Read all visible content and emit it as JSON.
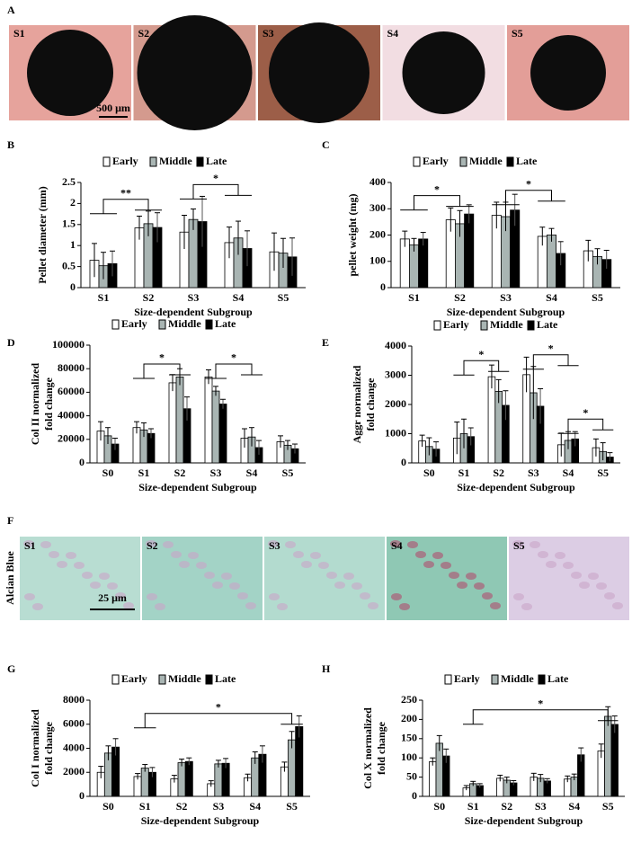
{
  "panel_labels": [
    "A",
    "B",
    "C",
    "D",
    "E",
    "F",
    "G",
    "H"
  ],
  "images_top": {
    "labels": [
      "S1",
      "S2",
      "S3",
      "S4",
      "S5"
    ],
    "scale_bar": "500 μm"
  },
  "images_stain": {
    "stain": "Alcian Blue",
    "labels": [
      "S1",
      "S2",
      "S3",
      "S4",
      "S5"
    ],
    "scale_bar": "25 μm"
  },
  "chart_data": [
    {
      "type": "bar",
      "ylabel": [
        "Pellet diameter (mm)"
      ],
      "xlabel": "Size-dependent Subgroup",
      "categories": [
        "S1",
        "S2",
        "S3",
        "S4",
        "S5"
      ],
      "series": [
        {
          "name": "Early",
          "color": "#ffffff",
          "values": [
            0.65,
            1.42,
            1.32,
            1.07,
            0.85
          ],
          "errors": [
            0.4,
            0.28,
            0.4,
            0.37,
            0.45
          ]
        },
        {
          "name": "Middle",
          "color": "#a9b5b3",
          "values": [
            0.52,
            1.52,
            1.62,
            1.18,
            0.82
          ],
          "errors": [
            0.32,
            0.3,
            0.25,
            0.4,
            0.35
          ]
        },
        {
          "name": "Late",
          "color": "#000000",
          "values": [
            0.57,
            1.43,
            1.57,
            0.93,
            0.73
          ],
          "errors": [
            0.3,
            0.35,
            0.6,
            0.42,
            0.45
          ]
        }
      ],
      "ylim": [
        0,
        2.5
      ],
      "yticks": [
        0,
        0.5,
        1,
        1.5,
        2,
        2.5
      ],
      "annotations": [
        {
          "text": "**",
          "from": 0,
          "to": 1,
          "y": 2.1
        },
        {
          "text": "*",
          "from": 2,
          "to": 3,
          "y": 2.45
        }
      ]
    },
    {
      "type": "bar",
      "ylabel": [
        "pellet weight (mg)"
      ],
      "xlabel": "Size-dependent Subgroup",
      "categories": [
        "S1",
        "S2",
        "S3",
        "S4",
        "S5"
      ],
      "series": [
        {
          "name": "Early",
          "color": "#ffffff",
          "values": [
            185,
            258,
            275,
            195,
            140
          ],
          "errors": [
            30,
            45,
            50,
            35,
            40
          ]
        },
        {
          "name": "Middle",
          "color": "#a9b5b3",
          "values": [
            162,
            243,
            270,
            200,
            118
          ],
          "errors": [
            25,
            50,
            55,
            25,
            30
          ]
        },
        {
          "name": "Late",
          "color": "#000000",
          "values": [
            185,
            280,
            295,
            130,
            107
          ],
          "errors": [
            25,
            35,
            60,
            45,
            35
          ]
        }
      ],
      "ylim": [
        0,
        400
      ],
      "yticks": [
        0,
        100,
        200,
        300,
        400
      ],
      "annotations": [
        {
          "text": "*",
          "from": 0,
          "to": 1,
          "y": 350
        },
        {
          "text": "*",
          "from": 2,
          "to": 3,
          "y": 370
        }
      ]
    },
    {
      "type": "bar",
      "ylabel": [
        "Col II normalized",
        "fold change"
      ],
      "xlabel": "Size-dependent Subgroup",
      "categories": [
        "S0",
        "S1",
        "S2",
        "S3",
        "S4",
        "S5"
      ],
      "series": [
        {
          "name": "Early",
          "color": "#ffffff",
          "values": [
            27000,
            30000,
            68000,
            73000,
            21000,
            18000
          ],
          "errors": [
            8000,
            5000,
            7000,
            6000,
            8000,
            5000
          ]
        },
        {
          "name": "Middle",
          "color": "#a9b5b3",
          "values": [
            23000,
            28000,
            73000,
            61000,
            22000,
            15000
          ],
          "errors": [
            7000,
            6000,
            7000,
            4000,
            8000,
            4000
          ]
        },
        {
          "name": "Late",
          "color": "#000000",
          "values": [
            16000,
            25000,
            46000,
            50000,
            13000,
            12000
          ],
          "errors": [
            5000,
            4000,
            10000,
            4000,
            6000,
            4000
          ]
        }
      ],
      "ylim": [
        0,
        100000
      ],
      "yticks": [
        0,
        20000,
        40000,
        60000,
        80000,
        100000
      ],
      "annotations": [
        {
          "text": "*",
          "from": 1,
          "to": 2,
          "y": 84000
        },
        {
          "text": "*",
          "from": 3,
          "to": 4,
          "y": 84000
        }
      ]
    },
    {
      "type": "bar",
      "ylabel": [
        "Aggr normalized",
        "fold change"
      ],
      "xlabel": "Size-dependent Subgroup",
      "categories": [
        "S0",
        "S1",
        "S2",
        "S3",
        "S4",
        "S5"
      ],
      "series": [
        {
          "name": "Early",
          "color": "#ffffff",
          "values": [
            750,
            850,
            2950,
            3020,
            620,
            520
          ],
          "errors": [
            200,
            550,
            400,
            600,
            400,
            300
          ]
        },
        {
          "name": "Middle",
          "color": "#a9b5b3",
          "values": [
            560,
            1000,
            2450,
            2400,
            770,
            390
          ],
          "errors": [
            300,
            500,
            400,
            900,
            300,
            300
          ]
        },
        {
          "name": "Late",
          "color": "#000000",
          "values": [
            470,
            900,
            1970,
            1940,
            820,
            200
          ],
          "errors": [
            250,
            300,
            500,
            600,
            250,
            150
          ]
        }
      ],
      "ylim": [
        0,
        4000
      ],
      "yticks": [
        0,
        1000,
        2000,
        3000,
        4000
      ],
      "annotations": [
        {
          "text": "*",
          "from": 1,
          "to": 2,
          "y": 3500
        },
        {
          "text": "*",
          "from": 3,
          "to": 4,
          "y": 3700
        },
        {
          "text": "*",
          "from": 4,
          "to": 5,
          "y": 1500
        }
      ]
    },
    {
      "type": "bar",
      "ylabel": [
        "Col I normalized",
        "fold change"
      ],
      "xlabel": "Size-dependent Subgroup",
      "categories": [
        "S0",
        "S1",
        "S2",
        "S3",
        "S4",
        "S5"
      ],
      "series": [
        {
          "name": "Early",
          "color": "#ffffff",
          "values": [
            2000,
            1650,
            1450,
            1050,
            1550,
            2450
          ],
          "errors": [
            500,
            250,
            300,
            250,
            300,
            400
          ]
        },
        {
          "name": "Middle",
          "color": "#a9b5b3",
          "values": [
            3600,
            2350,
            2800,
            2700,
            3200,
            4700
          ],
          "errors": [
            600,
            300,
            300,
            300,
            500,
            700
          ]
        },
        {
          "name": "Late",
          "color": "#000000",
          "values": [
            4100,
            2000,
            2900,
            2750,
            3500,
            5800
          ],
          "errors": [
            700,
            400,
            300,
            400,
            700,
            900
          ]
        }
      ],
      "ylim": [
        0,
        8000
      ],
      "yticks": [
        0,
        2000,
        4000,
        6000,
        8000
      ],
      "annotations": [
        {
          "text": "*",
          "from": 1,
          "to": 5,
          "y": 6900
        }
      ]
    },
    {
      "type": "bar",
      "ylabel": [
        "Col X normalized",
        "fold change"
      ],
      "xlabel": "Size-dependent Subgroup",
      "categories": [
        "S0",
        "S1",
        "S2",
        "S3",
        "S4",
        "S5"
      ],
      "series": [
        {
          "name": "Early",
          "color": "#ffffff",
          "values": [
            90,
            22,
            47,
            50,
            45,
            118
          ],
          "errors": [
            10,
            6,
            8,
            10,
            8,
            18
          ]
        },
        {
          "name": "Middle",
          "color": "#a9b5b3",
          "values": [
            138,
            33,
            42,
            47,
            50,
            208
          ],
          "errors": [
            20,
            6,
            8,
            10,
            8,
            25
          ]
        },
        {
          "name": "Late",
          "color": "#000000",
          "values": [
            105,
            28,
            35,
            40,
            108,
            187
          ],
          "errors": [
            18,
            5,
            6,
            6,
            18,
            22
          ]
        }
      ],
      "ylim": [
        0,
        250
      ],
      "yticks": [
        0,
        50,
        100,
        150,
        200,
        250
      ],
      "annotations": [
        {
          "text": "*",
          "from": 1,
          "to": 5,
          "y": 225
        }
      ]
    }
  ]
}
